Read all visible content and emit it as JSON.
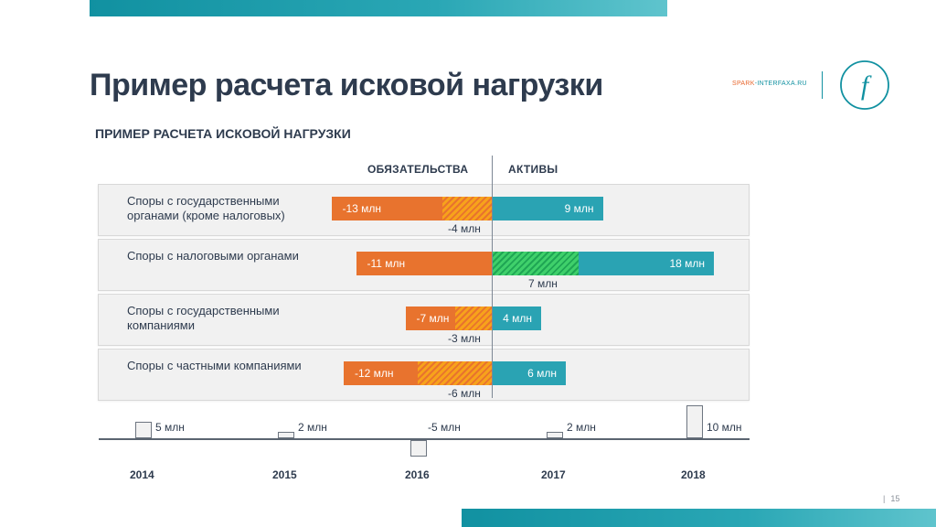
{
  "header": {
    "title": "Пример расчета исковой нагрузки",
    "subtitle": "ПРИМЕР РАСЧЕТА ИСКОВОЙ НАГРУЗКИ",
    "brand_part1": "SPARK",
    "brand_part2": "-INTERFAXA.RU",
    "logo_letter": "f"
  },
  "footer": {
    "separator": "|",
    "page_number": "15"
  },
  "colors": {
    "accent_teal": "#2aa3b3",
    "accent_orange": "#e8732e",
    "hatch_orange": "#f7a21b",
    "hatch_green": "#3fd06b",
    "text_dark": "#2e3b4e"
  },
  "chart_data": [
    {
      "type": "bar",
      "orientation": "horizontal",
      "columns": {
        "liabilities": "ОБЯЗАТЕЛЬСТВА",
        "assets": "АКТИВЫ"
      },
      "rows": [
        {
          "label": "Споры с государственными органами (кроме налоговых)",
          "liabilities": -13,
          "liabilities_label": "-13 млн",
          "assets": 9,
          "assets_label": "9 млн",
          "net": -4,
          "net_label": "-4 млн",
          "net_side": "liabilities"
        },
        {
          "label": "Споры с налоговыми органами",
          "liabilities": -11,
          "liabilities_label": "-11 млн",
          "assets": 18,
          "assets_label": "18 млн",
          "net": 7,
          "net_label": "7 млн",
          "net_side": "assets"
        },
        {
          "label": "Споры с государственными компаниями",
          "liabilities": -7,
          "liabilities_label": "-7 млн",
          "assets": 4,
          "assets_label": "4 млн",
          "net": -3,
          "net_label": "-3 млн",
          "net_side": "liabilities"
        },
        {
          "label": "Споры с частными компаниями",
          "liabilities": -12,
          "liabilities_label": "-12 млн",
          "assets": 6,
          "assets_label": "6 млн",
          "net": -6,
          "net_label": "-6 млн",
          "net_side": "liabilities"
        }
      ]
    },
    {
      "type": "bar",
      "categories": [
        "2014",
        "2015",
        "2016",
        "2017",
        "2018"
      ],
      "values": [
        5,
        2,
        -5,
        2,
        10
      ],
      "value_labels": [
        "5 млн",
        "2 млн",
        "-5 млн",
        "2 млн",
        "10 млн"
      ]
    }
  ]
}
